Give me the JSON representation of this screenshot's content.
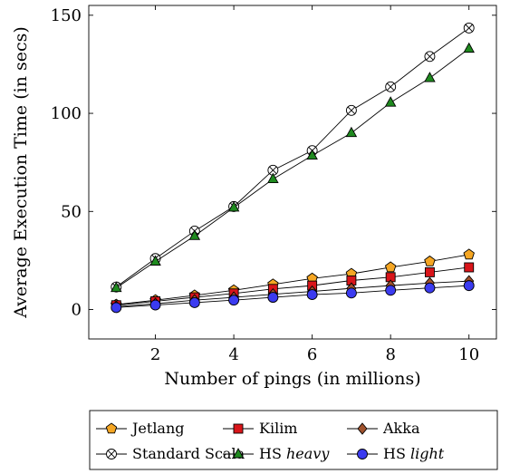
{
  "chart_data": {
    "type": "line",
    "xlabel": "Number of pings (in millions)",
    "ylabel": "Average Execution Time (in secs)",
    "xlim": [
      0.3,
      10.7
    ],
    "ylim": [
      -15,
      155
    ],
    "x_ticks": [
      2,
      4,
      6,
      8,
      10
    ],
    "y_ticks": [
      0,
      50,
      100,
      150
    ],
    "grid": false,
    "legend_position": "bottom, below plot (3 columns)",
    "x": [
      1,
      2,
      3,
      4,
      5,
      6,
      7,
      8,
      9,
      10
    ],
    "series": [
      {
        "name": "Jetlang",
        "name_prefix": "Jetlang",
        "name_emph": "",
        "marker": "pentagon",
        "color": "#f5a623",
        "values": [
          2.5,
          4.8,
          7.2,
          9.8,
          12.8,
          15.8,
          18.2,
          21.5,
          24.5,
          28.0
        ]
      },
      {
        "name": "Kilim",
        "name_prefix": "Kilim",
        "name_emph": "",
        "marker": "square",
        "color": "#d9151a",
        "values": [
          2.2,
          4.2,
          6.2,
          8.2,
          10.5,
          12.2,
          14.8,
          16.5,
          19.0,
          21.5
        ]
      },
      {
        "name": "Akka",
        "name_prefix": "Akka",
        "name_emph": "",
        "marker": "diamond",
        "color": "#a0522d",
        "values": [
          1.5,
          3.0,
          4.8,
          6.2,
          7.8,
          9.2,
          10.8,
          12.2,
          13.5,
          14.5
        ]
      },
      {
        "name": "Standard Scala",
        "name_prefix": "Standard Scala",
        "name_emph": "",
        "marker": "otimes",
        "color": "#ffffff",
        "values": [
          11.5,
          26.0,
          40.0,
          52.5,
          71.0,
          81.0,
          101.5,
          113.5,
          129.0,
          143.5
        ]
      },
      {
        "name": "HS heavy",
        "name_prefix": "HS ",
        "name_emph": "heavy",
        "marker": "triangle",
        "color": "#1f8a1f",
        "values": [
          11.0,
          24.5,
          37.5,
          52.0,
          66.5,
          78.5,
          90.0,
          105.5,
          118.0,
          133.0
        ]
      },
      {
        "name": "HS light",
        "name_prefix": "HS ",
        "name_emph": "light",
        "marker": "circle",
        "color": "#3b3bf0",
        "values": [
          1.0,
          2.3,
          3.5,
          4.8,
          6.2,
          7.6,
          8.4,
          9.8,
          11.0,
          12.2
        ]
      }
    ]
  }
}
